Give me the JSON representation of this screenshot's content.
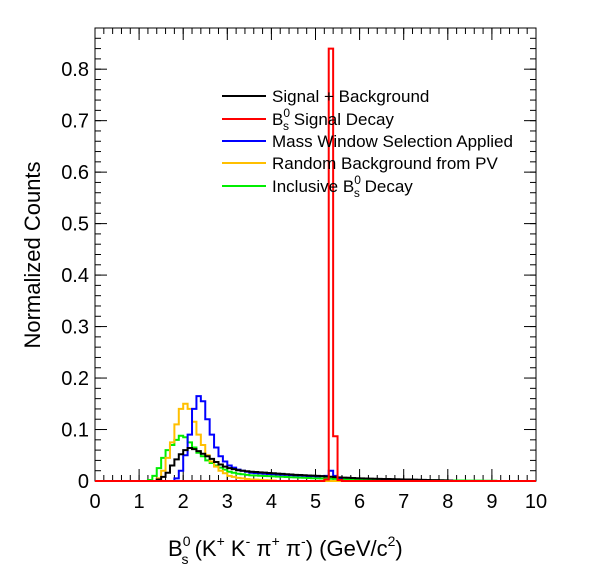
{
  "chart_data": {
    "type": "line",
    "subtype": "step-histogram",
    "xlabel": {
      "base": "B",
      "sub": "s",
      "sup": "0",
      "rest": " (K",
      "kplus": "+",
      "k2": " K",
      "kminus": "-",
      "pi1": " π",
      "piplus": "+",
      "pi2": "  π",
      "piminus": "-",
      "units": ") (GeV/c",
      "units_sup": "2",
      "close": ")"
    },
    "ylabel": "Normalized Counts",
    "xlim": [
      0,
      10
    ],
    "ylim": [
      0,
      0.88
    ],
    "x_ticks": [
      "0",
      "1",
      "2",
      "3",
      "4",
      "5",
      "6",
      "7",
      "8",
      "9",
      "10"
    ],
    "y_ticks": [
      "0",
      "0.1",
      "0.2",
      "0.3",
      "0.4",
      "0.5",
      "0.6",
      "0.7",
      "0.8"
    ],
    "bin_width": 0.1,
    "legend_placement": "top-right",
    "series": [
      {
        "name": "Signal + Background",
        "color": "#000000",
        "x": [
          1.4,
          1.5,
          1.6,
          1.7,
          1.8,
          1.9,
          2.0,
          2.1,
          2.2,
          2.3,
          2.4,
          2.5,
          2.6,
          2.7,
          2.8,
          2.9,
          3.0,
          3.2,
          3.5,
          4.0,
          4.5,
          5.0,
          5.5,
          6.0,
          7.0,
          8.0
        ],
        "values": [
          0.003,
          0.008,
          0.016,
          0.03,
          0.042,
          0.052,
          0.06,
          0.064,
          0.062,
          0.058,
          0.053,
          0.048,
          0.043,
          0.037,
          0.032,
          0.028,
          0.025,
          0.021,
          0.018,
          0.015,
          0.012,
          0.01,
          0.007,
          0.005,
          0.003,
          0.001
        ]
      },
      {
        "name": "B_s^0 Signal Decay",
        "legend_parts": {
          "base": "B",
          "sub": "s",
          "sup": "0",
          "rest": " Signal Decay"
        },
        "color": "#ff0000",
        "x": [
          5.2,
          5.3,
          5.4,
          5.5
        ],
        "values": [
          0.003,
          0.84,
          0.087,
          0.002
        ]
      },
      {
        "name": "Mass Window Selection Applied",
        "color": "#0000ff",
        "x": [
          1.8,
          1.9,
          2.0,
          2.1,
          2.2,
          2.3,
          2.4,
          2.5,
          2.6,
          2.7,
          2.8,
          2.9,
          3.0,
          3.1,
          3.2,
          3.3,
          3.4,
          3.5,
          4.0,
          4.5,
          5.0,
          5.2,
          5.3,
          5.4,
          5.5
        ],
        "values": [
          0.005,
          0.02,
          0.05,
          0.09,
          0.14,
          0.165,
          0.155,
          0.12,
          0.09,
          0.065,
          0.048,
          0.038,
          0.03,
          0.026,
          0.022,
          0.02,
          0.018,
          0.016,
          0.013,
          0.011,
          0.009,
          0.01,
          0.02,
          0.01,
          0.005
        ]
      },
      {
        "name": "Random Background from PV",
        "color": "#ffbf00",
        "x": [
          1.4,
          1.5,
          1.6,
          1.7,
          1.8,
          1.9,
          2.0,
          2.1,
          2.2,
          2.3,
          2.4,
          2.5,
          2.6,
          2.7,
          2.8,
          2.9,
          3.0,
          3.1,
          3.2,
          3.5,
          4.0
        ],
        "values": [
          0.005,
          0.02,
          0.045,
          0.075,
          0.11,
          0.14,
          0.15,
          0.14,
          0.115,
          0.09,
          0.07,
          0.05,
          0.038,
          0.028,
          0.02,
          0.015,
          0.01,
          0.008,
          0.006,
          0.003,
          0.001
        ]
      },
      {
        "name": "Inclusive B_s^0 Decay",
        "legend_parts": {
          "base": "Inclusive B",
          "sub": "s",
          "sup": "0",
          "rest": " Decay"
        },
        "color": "#00ee00",
        "x": [
          1.2,
          1.3,
          1.4,
          1.5,
          1.6,
          1.7,
          1.8,
          1.9,
          2.0,
          2.1,
          2.2,
          2.3,
          2.4,
          2.5,
          2.6,
          2.7,
          2.8,
          2.9,
          3.0,
          3.2,
          3.5,
          4.0,
          4.5,
          5.0,
          6.0,
          7.0,
          8.0,
          9.0
        ],
        "values": [
          0.002,
          0.01,
          0.025,
          0.045,
          0.06,
          0.07,
          0.08,
          0.088,
          0.085,
          0.075,
          0.065,
          0.055,
          0.048,
          0.04,
          0.035,
          0.03,
          0.026,
          0.022,
          0.018,
          0.014,
          0.011,
          0.009,
          0.007,
          0.005,
          0.003,
          0.002,
          0.001,
          0.0005
        ]
      }
    ],
    "grid": false
  }
}
